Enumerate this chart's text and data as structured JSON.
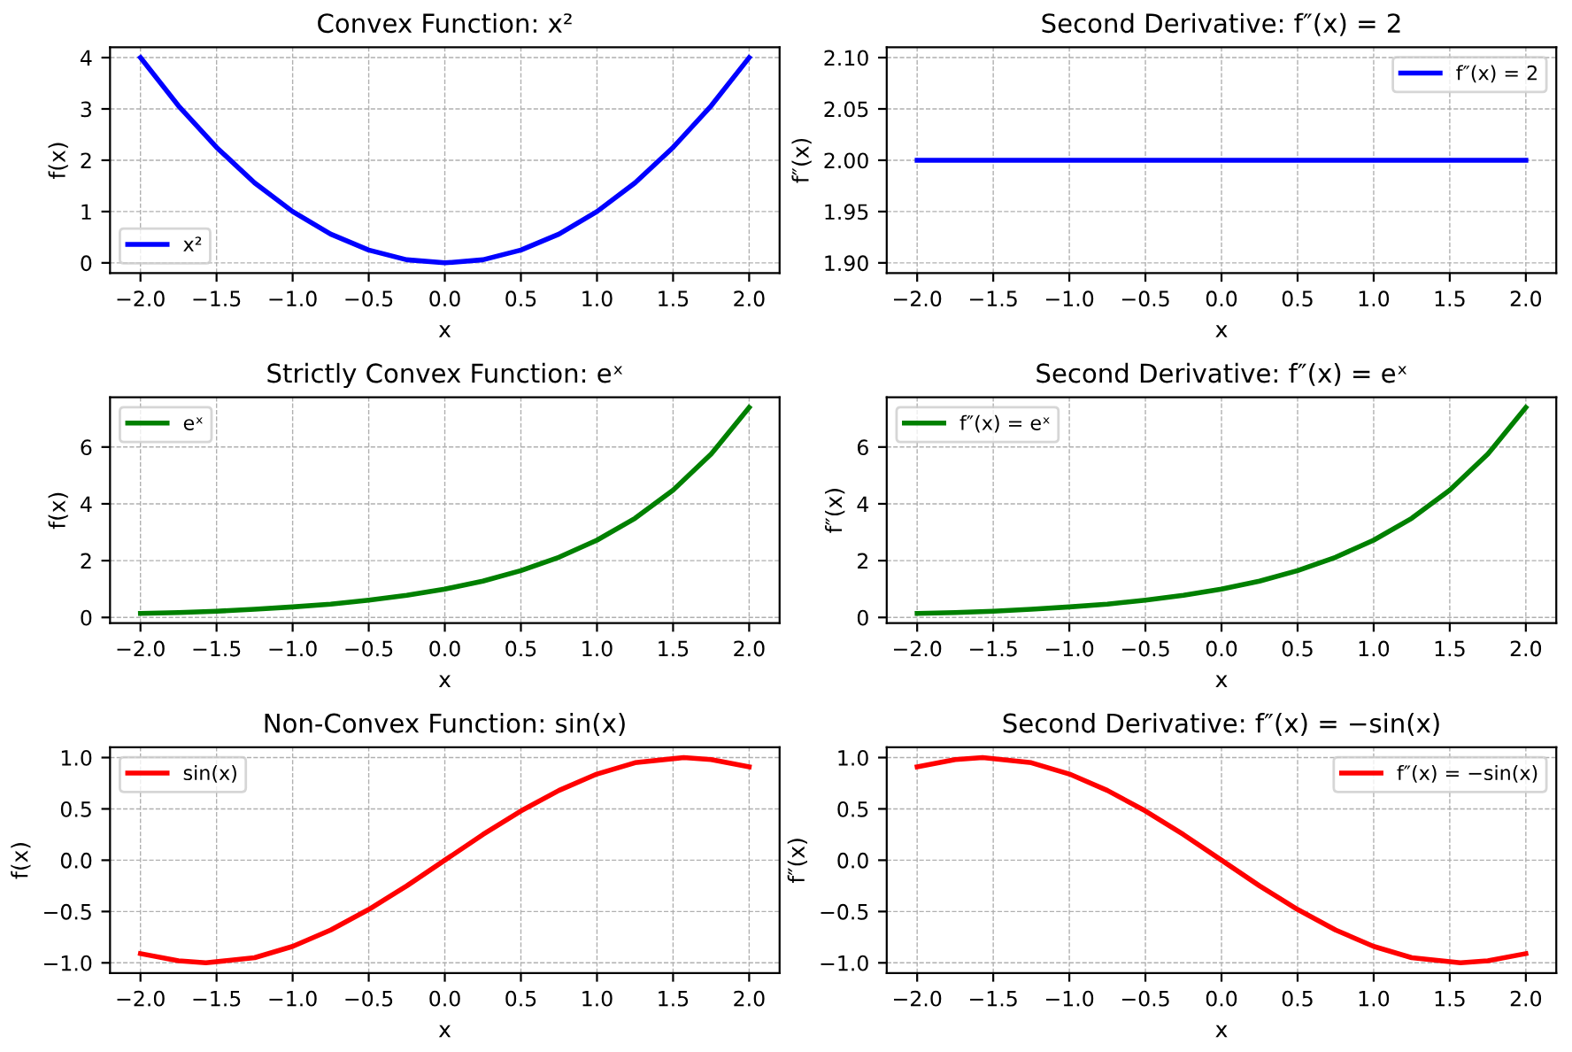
{
  "chart_data": [
    {
      "type": "line",
      "title": "Convex Function: x²",
      "xlabel": "x",
      "ylabel": "f(x)",
      "grid": true,
      "legend": "bottom left",
      "line_style": "solid",
      "marker": "none",
      "xlim": [
        -2.2,
        2.2
      ],
      "xticks": [
        {
          "value": -2,
          "label": "−2.0"
        },
        {
          "value": -1.5,
          "label": "−1.5"
        },
        {
          "value": -1,
          "label": "−1.0"
        },
        {
          "value": -0.5,
          "label": "−0.5"
        },
        {
          "value": 0,
          "label": "0.0"
        },
        {
          "value": 0.5,
          "label": "0.5"
        },
        {
          "value": 1,
          "label": "1.0"
        },
        {
          "value": 1.5,
          "label": "1.5"
        },
        {
          "value": 2,
          "label": "2.0"
        }
      ],
      "ylim": [
        -0.2,
        4.2
      ],
      "yticks": [
        0,
        1,
        2,
        3,
        4
      ],
      "series": [
        {
          "name": "x²",
          "color": "#0000ff",
          "x": [
            -2,
            -1.75,
            -1.5,
            -1.25,
            -1,
            -0.75,
            -0.5,
            -0.25,
            0,
            0.25,
            0.5,
            0.75,
            1,
            1.25,
            1.5,
            1.75,
            2
          ],
          "values": [
            4,
            3.06,
            2.25,
            1.56,
            1,
            0.56,
            0.25,
            0.06,
            0,
            0.06,
            0.25,
            0.56,
            1,
            1.56,
            2.25,
            3.06,
            4
          ]
        }
      ]
    },
    {
      "type": "line",
      "title": "Second Derivative: f″(x) = 2",
      "xlabel": "x",
      "ylabel": "f″(x)",
      "grid": true,
      "legend": "top right",
      "line_style": "solid",
      "marker": "none",
      "xlim": [
        -2.2,
        2.2
      ],
      "xticks": [
        {
          "value": -2,
          "label": "−2.0"
        },
        {
          "value": -1.5,
          "label": "−1.5"
        },
        {
          "value": -1,
          "label": "−1.0"
        },
        {
          "value": -0.5,
          "label": "−0.5"
        },
        {
          "value": 0,
          "label": "0.0"
        },
        {
          "value": 0.5,
          "label": "0.5"
        },
        {
          "value": 1,
          "label": "1.0"
        },
        {
          "value": 1.5,
          "label": "1.5"
        },
        {
          "value": 2,
          "label": "2.0"
        }
      ],
      "ylim": [
        1.89,
        2.11
      ],
      "yticks": [
        {
          "value": 1.9,
          "label": "1.90"
        },
        {
          "value": 1.95,
          "label": "1.95"
        },
        {
          "value": 2,
          "label": "2.00"
        },
        {
          "value": 2.05,
          "label": "2.05"
        },
        {
          "value": 2.1,
          "label": "2.10"
        }
      ],
      "series": [
        {
          "name": "f″(x) = 2",
          "color": "#0000ff",
          "x": [
            -2,
            2
          ],
          "values": [
            2,
            2
          ]
        }
      ]
    },
    {
      "type": "line",
      "title": "Strictly Convex Function: eˣ",
      "xlabel": "x",
      "ylabel": "f(x)",
      "grid": true,
      "legend": "top left",
      "line_style": "solid",
      "marker": "none",
      "xlim": [
        -2.2,
        2.2
      ],
      "xticks": [
        {
          "value": -2,
          "label": "−2.0"
        },
        {
          "value": -1.5,
          "label": "−1.5"
        },
        {
          "value": -1,
          "label": "−1.0"
        },
        {
          "value": -0.5,
          "label": "−0.5"
        },
        {
          "value": 0,
          "label": "0.0"
        },
        {
          "value": 0.5,
          "label": "0.5"
        },
        {
          "value": 1,
          "label": "1.0"
        },
        {
          "value": 1.5,
          "label": "1.5"
        },
        {
          "value": 2,
          "label": "2.0"
        }
      ],
      "ylim": [
        -0.2,
        7.75
      ],
      "yticks": [
        0,
        2,
        4,
        6
      ],
      "series": [
        {
          "name": "eˣ",
          "color": "#008000",
          "x": [
            -2,
            -1.75,
            -1.5,
            -1.25,
            -1,
            -0.75,
            -0.5,
            -0.25,
            0,
            0.25,
            0.5,
            0.75,
            1,
            1.25,
            1.5,
            1.75,
            2
          ],
          "values": [
            0.14,
            0.17,
            0.22,
            0.29,
            0.37,
            0.47,
            0.61,
            0.78,
            1,
            1.28,
            1.65,
            2.12,
            2.72,
            3.49,
            4.48,
            5.75,
            7.39
          ]
        }
      ]
    },
    {
      "type": "line",
      "title": "Second Derivative: f″(x) = eˣ",
      "xlabel": "x",
      "ylabel": "f″(x)",
      "grid": true,
      "legend": "top left",
      "line_style": "solid",
      "marker": "none",
      "xlim": [
        -2.2,
        2.2
      ],
      "xticks": [
        {
          "value": -2,
          "label": "−2.0"
        },
        {
          "value": -1.5,
          "label": "−1.5"
        },
        {
          "value": -1,
          "label": "−1.0"
        },
        {
          "value": -0.5,
          "label": "−0.5"
        },
        {
          "value": 0,
          "label": "0.0"
        },
        {
          "value": 0.5,
          "label": "0.5"
        },
        {
          "value": 1,
          "label": "1.0"
        },
        {
          "value": 1.5,
          "label": "1.5"
        },
        {
          "value": 2,
          "label": "2.0"
        }
      ],
      "ylim": [
        -0.2,
        7.75
      ],
      "yticks": [
        0,
        2,
        4,
        6
      ],
      "series": [
        {
          "name": "f″(x) = eˣ",
          "color": "#008000",
          "x": [
            -2,
            -1.75,
            -1.5,
            -1.25,
            -1,
            -0.75,
            -0.5,
            -0.25,
            0,
            0.25,
            0.5,
            0.75,
            1,
            1.25,
            1.5,
            1.75,
            2
          ],
          "values": [
            0.14,
            0.17,
            0.22,
            0.29,
            0.37,
            0.47,
            0.61,
            0.78,
            1,
            1.28,
            1.65,
            2.12,
            2.72,
            3.49,
            4.48,
            5.75,
            7.39
          ]
        }
      ]
    },
    {
      "type": "line",
      "title": "Non-Convex Function: sin(x)",
      "xlabel": "x",
      "ylabel": "f(x)",
      "grid": true,
      "legend": "top left",
      "line_style": "solid",
      "marker": "none",
      "xlim": [
        -2.2,
        2.2
      ],
      "xticks": [
        {
          "value": -2,
          "label": "−2.0"
        },
        {
          "value": -1.5,
          "label": "−1.5"
        },
        {
          "value": -1,
          "label": "−1.0"
        },
        {
          "value": -0.5,
          "label": "−0.5"
        },
        {
          "value": 0,
          "label": "0.0"
        },
        {
          "value": 0.5,
          "label": "0.5"
        },
        {
          "value": 1,
          "label": "1.0"
        },
        {
          "value": 1.5,
          "label": "1.5"
        },
        {
          "value": 2,
          "label": "2.0"
        }
      ],
      "ylim": [
        -1.1,
        1.1
      ],
      "yticks": [
        {
          "value": -1,
          "label": "−1.0"
        },
        {
          "value": -0.5,
          "label": "−0.5"
        },
        {
          "value": 0,
          "label": "0.0"
        },
        {
          "value": 0.5,
          "label": "0.5"
        },
        {
          "value": 1,
          "label": "1.0"
        }
      ],
      "series": [
        {
          "name": "sin(x)",
          "color": "#ff0000",
          "x": [
            -2,
            -1.75,
            -1.57,
            -1.25,
            -1,
            -0.75,
            -0.5,
            -0.25,
            0,
            0.25,
            0.5,
            0.75,
            1,
            1.25,
            1.57,
            1.75,
            2
          ],
          "values": [
            -0.91,
            -0.98,
            -1,
            -0.95,
            -0.84,
            -0.68,
            -0.48,
            -0.25,
            0,
            0.25,
            0.48,
            0.68,
            0.84,
            0.95,
            1,
            0.98,
            0.91
          ]
        }
      ]
    },
    {
      "type": "line",
      "title": "Second Derivative: f″(x) = −sin(x)",
      "xlabel": "x",
      "ylabel": "f″(x)",
      "grid": true,
      "legend": "top right",
      "line_style": "solid",
      "marker": "none",
      "xlim": [
        -2.2,
        2.2
      ],
      "xticks": [
        {
          "value": -2,
          "label": "−2.0"
        },
        {
          "value": -1.5,
          "label": "−1.5"
        },
        {
          "value": -1,
          "label": "−1.0"
        },
        {
          "value": -0.5,
          "label": "−0.5"
        },
        {
          "value": 0,
          "label": "0.0"
        },
        {
          "value": 0.5,
          "label": "0.5"
        },
        {
          "value": 1,
          "label": "1.0"
        },
        {
          "value": 1.5,
          "label": "1.5"
        },
        {
          "value": 2,
          "label": "2.0"
        }
      ],
      "ylim": [
        -1.1,
        1.1
      ],
      "yticks": [
        {
          "value": -1,
          "label": "−1.0"
        },
        {
          "value": -0.5,
          "label": "−0.5"
        },
        {
          "value": 0,
          "label": "0.0"
        },
        {
          "value": 0.5,
          "label": "0.5"
        },
        {
          "value": 1,
          "label": "1.0"
        }
      ],
      "series": [
        {
          "name": "f″(x) = −sin(x)",
          "color": "#ff0000",
          "x": [
            -2,
            -1.75,
            -1.57,
            -1.25,
            -1,
            -0.75,
            -0.5,
            -0.25,
            0,
            0.25,
            0.5,
            0.75,
            1,
            1.25,
            1.57,
            1.75,
            2
          ],
          "values": [
            0.91,
            0.98,
            1,
            0.95,
            0.84,
            0.68,
            0.48,
            0.25,
            0,
            -0.25,
            -0.48,
            -0.68,
            -0.84,
            -0.95,
            -1,
            -0.98,
            -0.91
          ]
        }
      ]
    }
  ]
}
